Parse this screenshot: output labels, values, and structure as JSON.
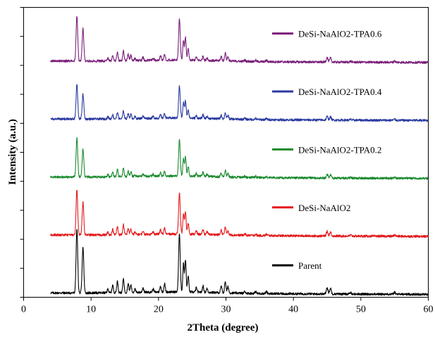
{
  "chart_data": {
    "type": "line",
    "title": "",
    "xlabel": "2Theta (degree)",
    "ylabel": "Intensity (a.u.)",
    "xlim": [
      0,
      60
    ],
    "xticks": [
      0,
      10,
      20,
      30,
      40,
      50,
      60
    ],
    "ylim": [
      0,
      10
    ],
    "yticks_labeled": false,
    "grid": false,
    "legend_placement": "inline, right of each trace",
    "peaks": [
      {
        "x": 7.9,
        "rel": 1.0,
        "w": 0.12
      },
      {
        "x": 8.8,
        "rel": 0.72,
        "w": 0.12
      },
      {
        "x": 12.5,
        "rel": 0.06,
        "w": 0.1
      },
      {
        "x": 13.2,
        "rel": 0.12,
        "w": 0.1
      },
      {
        "x": 13.9,
        "rel": 0.18,
        "w": 0.1
      },
      {
        "x": 14.8,
        "rel": 0.22,
        "w": 0.1
      },
      {
        "x": 15.5,
        "rel": 0.14,
        "w": 0.1
      },
      {
        "x": 15.9,
        "rel": 0.12,
        "w": 0.1
      },
      {
        "x": 16.5,
        "rel": 0.05,
        "w": 0.1
      },
      {
        "x": 17.7,
        "rel": 0.07,
        "w": 0.1
      },
      {
        "x": 19.2,
        "rel": 0.05,
        "w": 0.1
      },
      {
        "x": 20.3,
        "rel": 0.09,
        "w": 0.1
      },
      {
        "x": 20.9,
        "rel": 0.13,
        "w": 0.1
      },
      {
        "x": 23.1,
        "rel": 0.92,
        "w": 0.12
      },
      {
        "x": 23.7,
        "rel": 0.45,
        "w": 0.1
      },
      {
        "x": 24.0,
        "rel": 0.5,
        "w": 0.1
      },
      {
        "x": 24.4,
        "rel": 0.25,
        "w": 0.1
      },
      {
        "x": 25.6,
        "rel": 0.07,
        "w": 0.1
      },
      {
        "x": 26.6,
        "rel": 0.1,
        "w": 0.1
      },
      {
        "x": 27.2,
        "rel": 0.06,
        "w": 0.1
      },
      {
        "x": 29.3,
        "rel": 0.1,
        "w": 0.1
      },
      {
        "x": 29.9,
        "rel": 0.18,
        "w": 0.1
      },
      {
        "x": 30.3,
        "rel": 0.1,
        "w": 0.1
      },
      {
        "x": 32.8,
        "rel": 0.03,
        "w": 0.1
      },
      {
        "x": 34.4,
        "rel": 0.03,
        "w": 0.1
      },
      {
        "x": 36.0,
        "rel": 0.03,
        "w": 0.1
      },
      {
        "x": 45.0,
        "rel": 0.1,
        "w": 0.12
      },
      {
        "x": 45.5,
        "rel": 0.09,
        "w": 0.12
      },
      {
        "x": 48.5,
        "rel": 0.02,
        "w": 0.12
      },
      {
        "x": 55.0,
        "rel": 0.03,
        "w": 0.12
      }
    ],
    "x_range_measured": [
      4,
      60
    ],
    "series": [
      {
        "name": "Parent",
        "color": "#000000",
        "baseline": 0.15,
        "peak_height": 2.2
      },
      {
        "name": "DeSi-NaAlO2",
        "color": "#e31a1c",
        "baseline": 2.15,
        "peak_height": 1.55
      },
      {
        "name": "DeSi-NaAlO2-TPA0.2",
        "color": "#1a8a2e",
        "baseline": 4.15,
        "peak_height": 1.35
      },
      {
        "name": "DeSi-NaAlO2-TPA0.4",
        "color": "#2b3aa0",
        "baseline": 6.15,
        "peak_height": 1.2
      },
      {
        "name": "DeSi-NaAlO2-TPA0.6",
        "color": "#7a1f7a",
        "baseline": 8.15,
        "peak_height": 1.55
      }
    ]
  }
}
